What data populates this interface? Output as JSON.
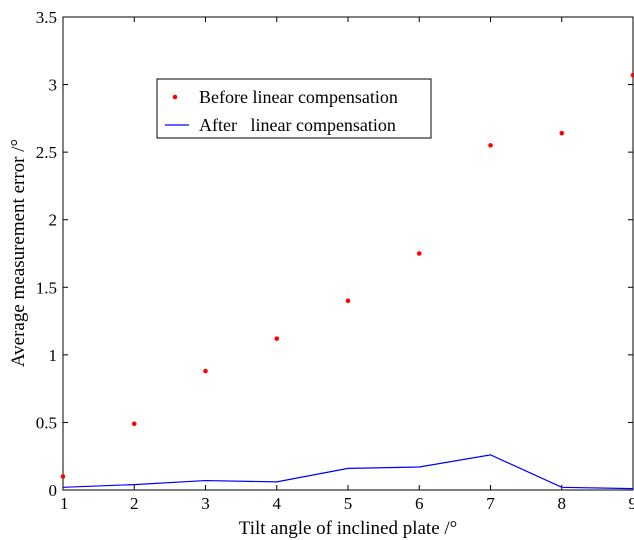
{
  "chart_data": {
    "type": "line",
    "xlabel": "Tilt angle of inclined plate /°",
    "ylabel": "Average measurement error /°",
    "xlim": [
      1,
      9
    ],
    "ylim": [
      0,
      3.5
    ],
    "xticks": [
      1,
      2,
      3,
      4,
      5,
      6,
      7,
      8,
      9
    ],
    "yticks": [
      0,
      0.5,
      1,
      1.5,
      2,
      2.5,
      3,
      3.5
    ],
    "ytick_labels": [
      "0",
      "0.5",
      "1",
      "1.5",
      "2",
      "2.5",
      "3",
      "3.5"
    ],
    "grid": false,
    "legend": "upper-left",
    "x": [
      1,
      2,
      3,
      4,
      5,
      6,
      7,
      8,
      9
    ],
    "series": [
      {
        "name": "Before linear compensation",
        "style": "markers",
        "color": "#ff0000",
        "values": [
          0.1,
          0.49,
          0.88,
          1.12,
          1.4,
          1.75,
          2.55,
          2.64,
          3.07
        ]
      },
      {
        "name": "After   linear compensation",
        "style": "line",
        "color": "#0000ff",
        "values": [
          0.02,
          0.04,
          0.07,
          0.06,
          0.16,
          0.17,
          0.26,
          0.02,
          0.01
        ]
      }
    ]
  }
}
